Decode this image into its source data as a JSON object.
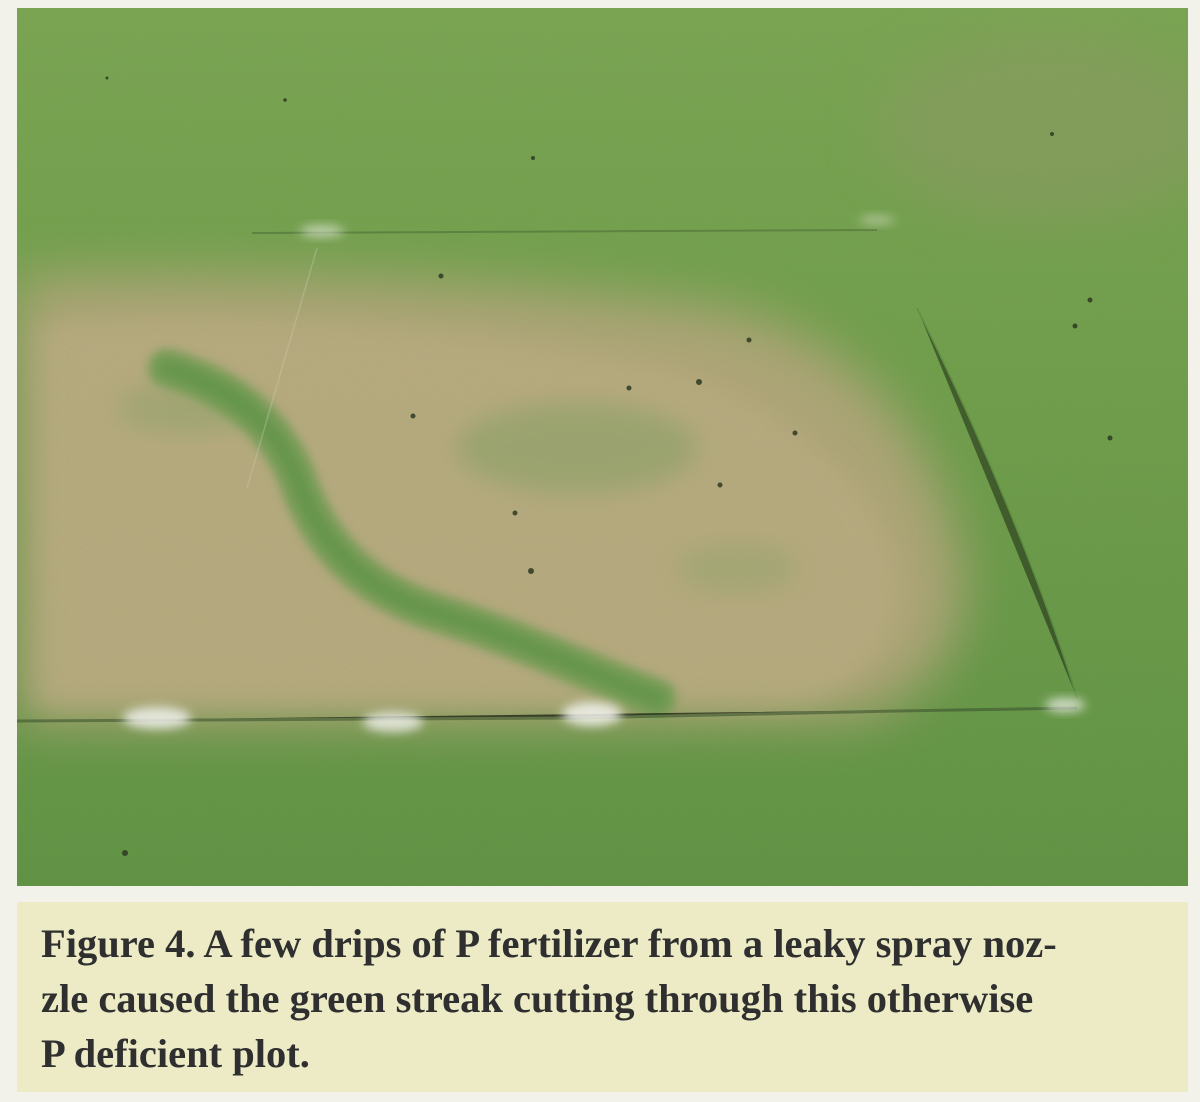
{
  "figure": {
    "caption": "Figure 4. A few drips of P fertilizer from a leaky spray noz-zle caused the green streak cutting through this otherwise P deficient plot.",
    "caption_lines": [
      "Figure 4. A few drips of P fertilizer from a leaky spray noz-",
      "zle caused the green streak cutting through this otherwise",
      "P deficient plot."
    ],
    "photo_subject": "turfgrass plot with brown phosphorus-deficient patch crossed by a green streak",
    "colors": {
      "healthy_turf": "#6fa148",
      "deficient_turf": "#b8a77d",
      "caption_background": "#ecebc6",
      "caption_text": "#2f2f2f"
    }
  }
}
